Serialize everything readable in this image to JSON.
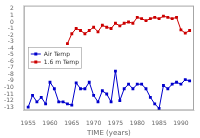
{
  "chart_data": {
    "type": "line",
    "xlabel": "TIME (years)",
    "xlim": [
      1954,
      1993
    ],
    "ylim": [
      -13.5,
      2.5
    ],
    "xticks": [
      1955,
      1960,
      1965,
      1970,
      1975,
      1980,
      1985,
      1990
    ],
    "yticks": [
      2,
      1,
      0,
      -1,
      -2,
      -3,
      -4,
      -5,
      -6,
      -7,
      -8,
      -9,
      -10,
      -11,
      -12,
      -13
    ],
    "grid": false,
    "legend": "left",
    "series": [
      {
        "name": "Air Temp",
        "color": "#0000cc",
        "marker": "square",
        "x": [
          1955,
          1956,
          1957,
          1958,
          1959,
          1960,
          1961,
          1962,
          1963,
          1964,
          1965,
          1966,
          1967,
          1968,
          1969,
          1970,
          1971,
          1972,
          1973,
          1974,
          1975,
          1976,
          1977,
          1978,
          1979,
          1980,
          1981,
          1982,
          1983,
          1984,
          1985,
          1986,
          1987,
          1988,
          1989,
          1990,
          1991,
          1992
        ],
        "values": [
          -13.0,
          -11.2,
          -12.2,
          -11.5,
          -12.5,
          -9.2,
          -10.2,
          -12.2,
          -12.2,
          -12.5,
          -12.7,
          -9.3,
          -10.2,
          -10.2,
          -9.2,
          -11.2,
          -12.2,
          -10.5,
          -11.0,
          -12.2,
          -7.5,
          -12.0,
          -10.2,
          -9.5,
          -10.2,
          -9.5,
          -9.5,
          -10.2,
          -11.5,
          -12.5,
          -13.2,
          -9.7,
          -10.2,
          -9.5,
          -9.2,
          -9.5,
          -8.8,
          -9.0
        ]
      },
      {
        "name": "1.6 m Temp",
        "color": "#cc0000",
        "marker": "square",
        "x": [
          1964,
          1965,
          1966,
          1967,
          1968,
          1969,
          1970,
          1971,
          1972,
          1973,
          1974,
          1975,
          1976,
          1977,
          1978,
          1979,
          1980,
          1981,
          1982,
          1983,
          1984,
          1985,
          1986,
          1987,
          1988,
          1989,
          1990,
          1991,
          1992
        ],
        "values": [
          -3.3,
          -1.8,
          -1.0,
          -1.3,
          -1.8,
          -1.3,
          -0.8,
          -1.5,
          -0.5,
          -0.8,
          -1.0,
          -0.2,
          -0.6,
          -0.2,
          0.0,
          -0.2,
          0.7,
          0.5,
          0.2,
          0.5,
          0.7,
          0.5,
          0.9,
          0.7,
          0.5,
          0.7,
          -1.2,
          -1.7,
          -1.3
        ]
      }
    ]
  }
}
